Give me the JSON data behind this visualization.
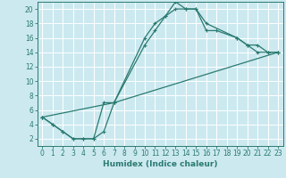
{
  "xlabel": "Humidex (Indice chaleur)",
  "xlim": [
    -0.5,
    23.5
  ],
  "ylim": [
    1,
    21
  ],
  "xticks": [
    0,
    1,
    2,
    3,
    4,
    5,
    6,
    7,
    8,
    9,
    10,
    11,
    12,
    13,
    14,
    15,
    16,
    17,
    18,
    19,
    20,
    21,
    22,
    23
  ],
  "yticks": [
    2,
    4,
    6,
    8,
    10,
    12,
    14,
    16,
    18,
    20
  ],
  "bg_color": "#cce9f0",
  "line_color": "#2a7a70",
  "grid_color": "#ffffff",
  "lines": [
    {
      "x": [
        0,
        1,
        2,
        3,
        4,
        5,
        6,
        7,
        10,
        11,
        12,
        13,
        14,
        15,
        16,
        17,
        19,
        20,
        21,
        22,
        23
      ],
      "y": [
        5,
        4,
        3,
        2,
        2,
        2,
        3,
        7,
        16,
        18,
        19,
        20,
        20,
        20,
        17,
        17,
        16,
        15,
        15,
        14,
        14
      ]
    },
    {
      "x": [
        0,
        1,
        2,
        3,
        4,
        5,
        6,
        7,
        10,
        11,
        12,
        13,
        14,
        15,
        16,
        19,
        20,
        21,
        22,
        23
      ],
      "y": [
        5,
        4,
        3,
        2,
        2,
        2,
        7,
        7,
        15,
        17,
        19,
        21,
        20,
        20,
        18,
        16,
        15,
        14,
        14,
        14
      ]
    },
    {
      "x": [
        0,
        7,
        23
      ],
      "y": [
        5,
        7,
        14
      ]
    }
  ]
}
